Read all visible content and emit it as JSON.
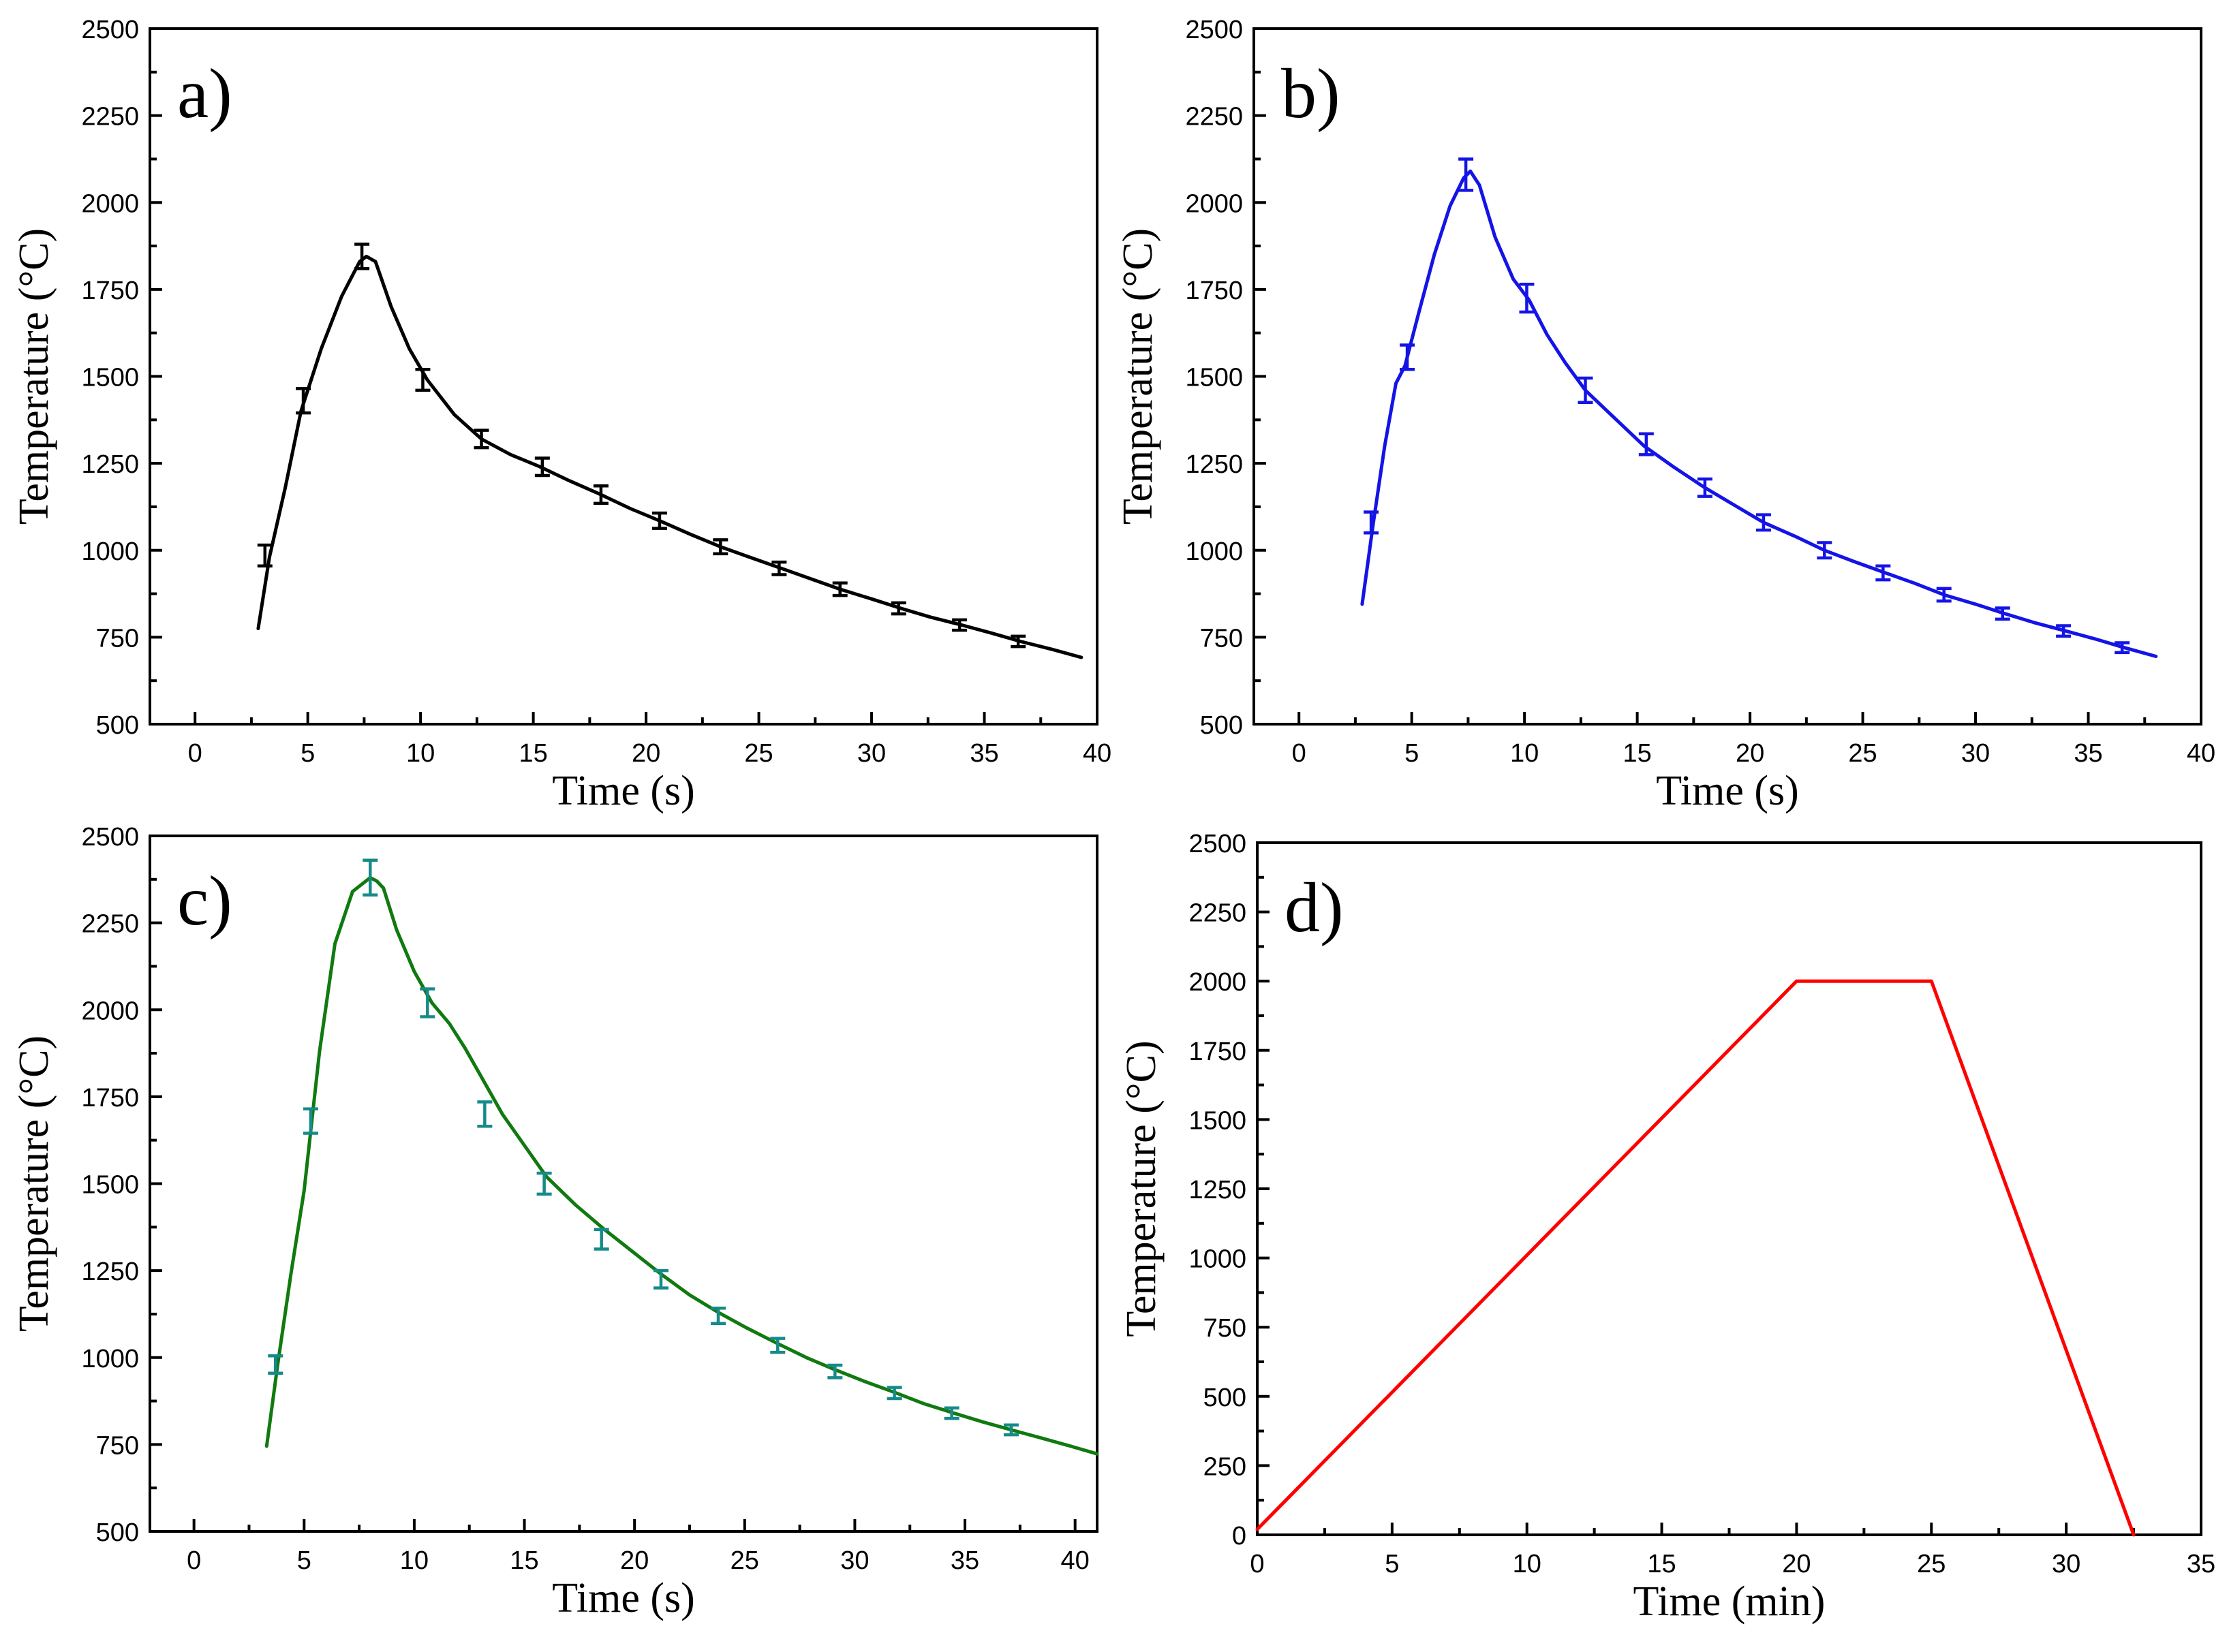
{
  "figure": {
    "title": ""
  },
  "chart_data": [
    {
      "type": "line",
      "panel_label": "a)",
      "title": "",
      "xlabel": "Time (s)",
      "ylabel": "Temperature (°C)",
      "xlim": [
        -2,
        40
      ],
      "ylim": [
        500,
        2500
      ],
      "xticks": [
        0,
        5,
        10,
        15,
        20,
        25,
        30,
        35,
        40
      ],
      "yticks": [
        500,
        750,
        1000,
        1250,
        1500,
        1750,
        2000,
        2250,
        2500
      ],
      "xtick_labels": [
        "0",
        "5",
        "10",
        "15",
        "20",
        "25",
        "30",
        "35",
        "40"
      ],
      "ytick_labels": [
        "500",
        "750",
        "1000",
        "1250",
        "1500",
        "1750",
        "2000",
        "2250",
        "2500"
      ],
      "grid": false,
      "color": "#000000",
      "series": [
        {
          "name": "temperature",
          "x": [
            2.8,
            3.3,
            4.0,
            4.7,
            5.6,
            6.5,
            7.3,
            7.6,
            8.0,
            8.7,
            9.5,
            10.3,
            11.5,
            12.7,
            14.0,
            15.3,
            16.6,
            18.0,
            19.3,
            20.6,
            22.0,
            23.3,
            24.6,
            26.0,
            27.3,
            28.6,
            30.0,
            31.3,
            32.6,
            34.0,
            35.3,
            36.6,
            38.0,
            39.3
          ],
          "y": [
            775,
            980,
            1180,
            1400,
            1580,
            1730,
            1830,
            1845,
            1830,
            1700,
            1580,
            1490,
            1390,
            1320,
            1275,
            1240,
            1200,
            1160,
            1120,
            1085,
            1045,
            1010,
            980,
            948,
            918,
            888,
            860,
            833,
            808,
            785,
            762,
            738,
            715,
            692
          ]
        }
      ],
      "error_bars": {
        "x": [
          3.1,
          4.8,
          7.4,
          10.1,
          12.7,
          15.4,
          18.0,
          20.6,
          23.3,
          25.9,
          28.6,
          31.2,
          33.9,
          36.5
        ],
        "y": [
          985,
          1430,
          1845,
          1490,
          1320,
          1240,
          1160,
          1085,
          1010,
          948,
          888,
          833,
          785,
          738
        ],
        "err": [
          30,
          35,
          35,
          30,
          25,
          25,
          25,
          22,
          20,
          18,
          18,
          16,
          15,
          15
        ]
      }
    },
    {
      "type": "line",
      "panel_label": "b)",
      "title": "",
      "xlabel": "Time (s)",
      "ylabel": "Temperature (°C)",
      "xlim": [
        -2,
        40
      ],
      "ylim": [
        500,
        2500
      ],
      "xticks": [
        0,
        5,
        10,
        15,
        20,
        25,
        30,
        35,
        40
      ],
      "yticks": [
        500,
        750,
        1000,
        1250,
        1500,
        1750,
        2000,
        2250,
        2500
      ],
      "xtick_labels": [
        "0",
        "5",
        "10",
        "15",
        "20",
        "25",
        "30",
        "35",
        "40"
      ],
      "ytick_labels": [
        "500",
        "750",
        "1000",
        "1250",
        "1500",
        "1750",
        "2000",
        "2250",
        "2500"
      ],
      "grid": false,
      "color": "#1414e6",
      "series": [
        {
          "name": "temperature",
          "x": [
            2.8,
            3.3,
            3.8,
            4.3,
            4.7,
            5.3,
            6.0,
            6.7,
            7.3,
            7.6,
            8.0,
            8.7,
            9.5,
            10.2,
            11.0,
            11.8,
            12.7,
            14.0,
            15.3,
            16.6,
            18.0,
            19.3,
            20.6,
            22.0,
            23.3,
            24.6,
            26.0,
            27.3,
            28.6,
            30.0,
            31.3,
            32.6,
            34.0,
            35.3,
            36.6,
            38.0
          ],
          "y": [
            845,
            1080,
            1300,
            1480,
            1530,
            1680,
            1850,
            1990,
            2070,
            2090,
            2050,
            1900,
            1780,
            1720,
            1620,
            1540,
            1460,
            1380,
            1300,
            1240,
            1180,
            1130,
            1080,
            1040,
            1000,
            968,
            935,
            905,
            872,
            845,
            818,
            792,
            768,
            745,
            720,
            695
          ]
        }
      ],
      "error_bars": {
        "x": [
          3.2,
          4.8,
          7.4,
          10.1,
          12.7,
          15.4,
          18.0,
          20.6,
          23.3,
          25.9,
          28.6,
          31.2,
          33.9,
          36.5
        ],
        "y": [
          1080,
          1555,
          2080,
          1725,
          1460,
          1305,
          1180,
          1080,
          1000,
          935,
          872,
          818,
          768,
          720
        ],
        "err": [
          30,
          35,
          45,
          40,
          35,
          30,
          25,
          22,
          22,
          20,
          18,
          16,
          15,
          14
        ]
      }
    },
    {
      "type": "line",
      "panel_label": "c)",
      "title": "",
      "xlabel": "Time (s)",
      "ylabel": "Temperature (°C)",
      "xlim": [
        -2,
        41
      ],
      "ylim": [
        500,
        2500
      ],
      "xticks": [
        0,
        5,
        10,
        15,
        20,
        25,
        30,
        35,
        40
      ],
      "yticks": [
        500,
        750,
        1000,
        1250,
        1500,
        1750,
        2000,
        2250,
        2500
      ],
      "xtick_labels": [
        "0",
        "5",
        "10",
        "15",
        "20",
        "25",
        "30",
        "35",
        "40"
      ],
      "ytick_labels": [
        "500",
        "750",
        "1000",
        "1250",
        "1500",
        "1750",
        "2000",
        "2250",
        "2500"
      ],
      "grid": false,
      "color": "#107a10",
      "error_color": "#168a8a",
      "series": [
        {
          "name": "temperature",
          "x": [
            3.3,
            3.8,
            4.4,
            5.0,
            5.7,
            6.4,
            7.2,
            8.0,
            8.3,
            8.6,
            9.2,
            10.0,
            10.8,
            11.6,
            12.3,
            13.2,
            14.0,
            15.0,
            16.0,
            17.3,
            18.6,
            20.0,
            21.2,
            22.5,
            23.8,
            25.1,
            26.5,
            27.8,
            29.1,
            30.5,
            31.8,
            33.1,
            34.5,
            35.8,
            37.1,
            38.5,
            39.8,
            41.0
          ],
          "y": [
            745,
            980,
            1240,
            1480,
            1880,
            2190,
            2340,
            2380,
            2370,
            2350,
            2230,
            2110,
            2020,
            1960,
            1890,
            1790,
            1700,
            1610,
            1520,
            1440,
            1370,
            1300,
            1240,
            1180,
            1130,
            1085,
            1040,
            1000,
            965,
            930,
            900,
            868,
            840,
            815,
            792,
            768,
            745,
            723
          ]
        }
      ],
      "error_bars": {
        "x": [
          3.7,
          5.3,
          8.0,
          10.6,
          13.2,
          15.9,
          18.5,
          21.2,
          23.8,
          26.5,
          29.1,
          31.8,
          34.4,
          37.1
        ],
        "y": [
          980,
          1680,
          2380,
          2020,
          1700,
          1500,
          1340,
          1225,
          1120,
          1035,
          960,
          898,
          840,
          792
        ],
        "err": [
          25,
          35,
          50,
          40,
          35,
          30,
          28,
          25,
          22,
          20,
          18,
          16,
          15,
          14
        ]
      }
    },
    {
      "type": "line",
      "panel_label": "d)",
      "title": "",
      "xlabel": "Time (min)",
      "ylabel": "Temperature (°C)",
      "xlim": [
        0,
        35
      ],
      "ylim": [
        0,
        2500
      ],
      "xticks": [
        0,
        5,
        10,
        15,
        20,
        25,
        30,
        35
      ],
      "yticks": [
        0,
        250,
        500,
        750,
        1000,
        1250,
        1500,
        1750,
        2000,
        2250,
        2500
      ],
      "xtick_labels": [
        "0",
        "5",
        "10",
        "15",
        "20",
        "25",
        "30",
        "35"
      ],
      "ytick_labels": [
        "0",
        "250",
        "500",
        "750",
        "1000",
        "1250",
        "1500",
        "1750",
        "2000",
        "2250",
        "2500"
      ],
      "grid": false,
      "color": "#ff0000",
      "series": [
        {
          "name": "temperature",
          "x": [
            0,
            20,
            25,
            32.5
          ],
          "y": [
            20,
            2000,
            2000,
            0
          ]
        }
      ]
    }
  ]
}
